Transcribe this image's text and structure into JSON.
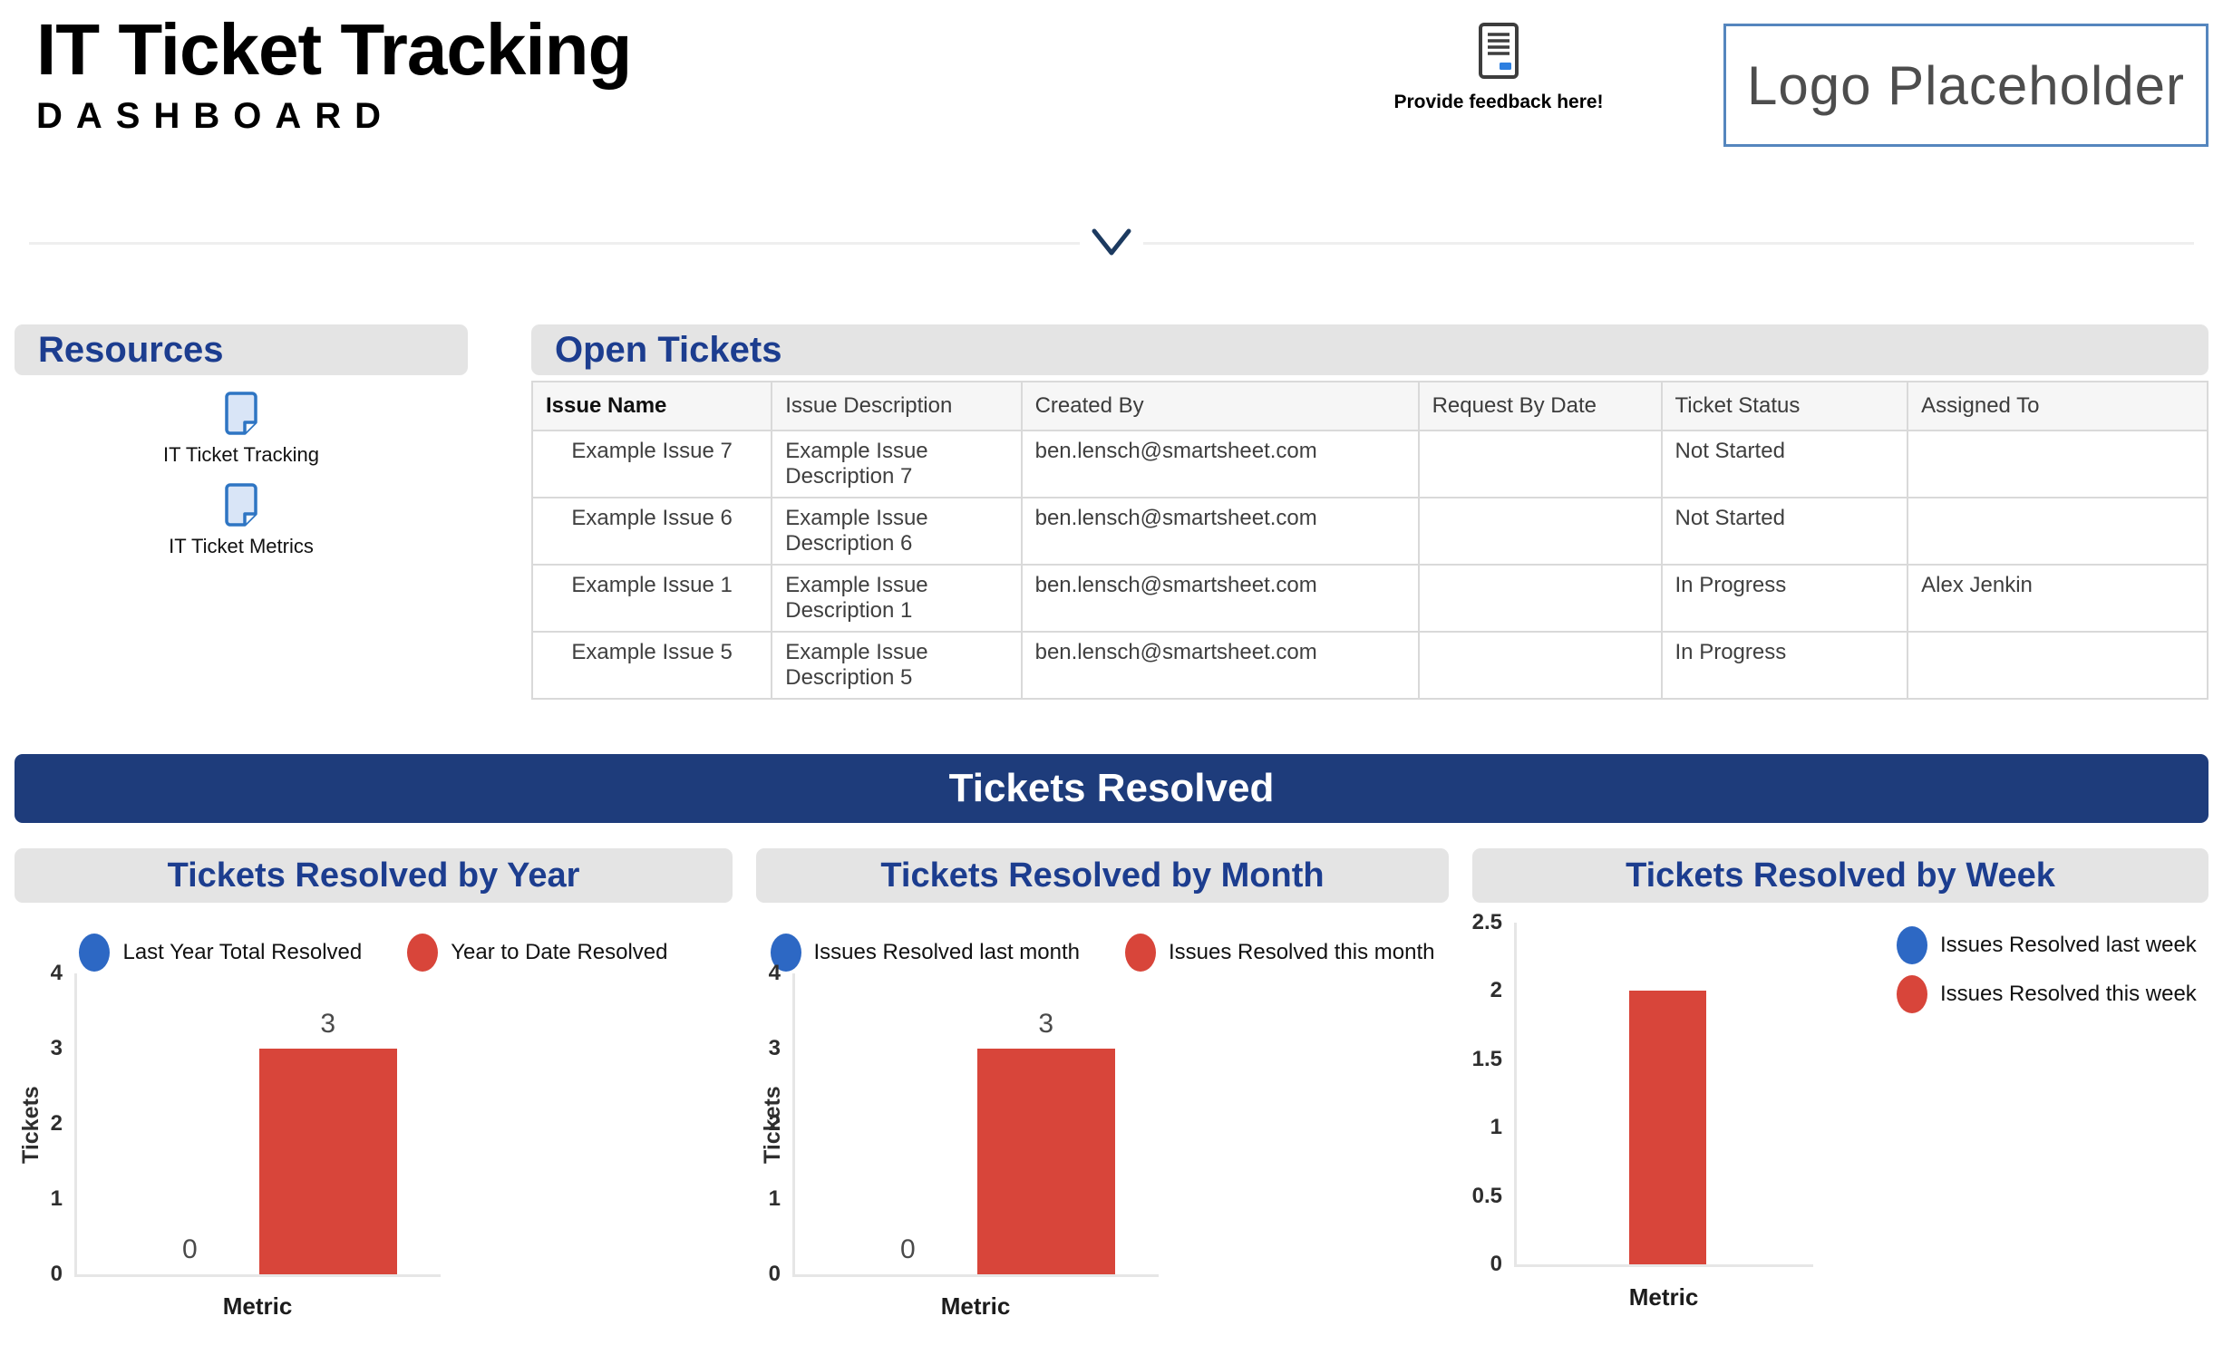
{
  "header": {
    "title": "IT Ticket Tracking",
    "subtitle": "DASHBOARD",
    "feedback_label": "Provide feedback here!",
    "logo_text": "Logo Placeholder"
  },
  "resources": {
    "title": "Resources",
    "items": [
      {
        "label": "IT Ticket Tracking"
      },
      {
        "label": "IT Ticket Metrics"
      }
    ]
  },
  "open_tickets": {
    "title": "Open Tickets",
    "columns": [
      "Issue Name",
      "Issue Description",
      "Created By",
      "Request By Date",
      "Ticket Status",
      "Assigned To"
    ],
    "rows": [
      {
        "issue_name": "Example Issue 7",
        "description": "Example Issue Description 7",
        "created_by": "ben.lensch@smartsheet.com",
        "request_by_date": "",
        "status": "Not Started",
        "assigned_to": ""
      },
      {
        "issue_name": "Example Issue 6",
        "description": "Example Issue Description 6",
        "created_by": "ben.lensch@smartsheet.com",
        "request_by_date": "",
        "status": "Not Started",
        "assigned_to": ""
      },
      {
        "issue_name": "Example Issue 1",
        "description": "Example Issue Description 1",
        "created_by": "ben.lensch@smartsheet.com",
        "request_by_date": "",
        "status": "In Progress",
        "assigned_to": "Alex Jenkin"
      },
      {
        "issue_name": "Example Issue 5",
        "description": "Example Issue Description 5",
        "created_by": "ben.lensch@smartsheet.com",
        "request_by_date": "",
        "status": "In Progress",
        "assigned_to": ""
      }
    ]
  },
  "banner": {
    "title": "Tickets Resolved"
  },
  "colors": {
    "heading_blue": "#1C3D8F",
    "banner_navy": "#1E3C7B",
    "bar_blue": "#2D68C4",
    "bar_red": "#D8453A",
    "section_gray": "#E4E4E4"
  },
  "chart_data": [
    {
      "type": "bar",
      "title": "Tickets Resolved by Year",
      "categories": [
        "Metric"
      ],
      "series": [
        {
          "name": "Last Year Total Resolved",
          "color": "#2D68C4",
          "values": [
            0
          ]
        },
        {
          "name": "Year to Date Resolved",
          "color": "#D8453A",
          "values": [
            3
          ]
        }
      ],
      "xlabel": "Metric",
      "ylabel": "Tickets",
      "ylim": [
        0,
        4
      ],
      "yticks": [
        0,
        1,
        2,
        3,
        4
      ],
      "legend_position": "top",
      "data_labels": true,
      "grid": false
    },
    {
      "type": "bar",
      "title": "Tickets Resolved by Month",
      "categories": [
        "Metric"
      ],
      "series": [
        {
          "name": "Issues Resolved last month",
          "color": "#2D68C4",
          "values": [
            0
          ]
        },
        {
          "name": "Issues Resolved this month",
          "color": "#D8453A",
          "values": [
            3
          ]
        }
      ],
      "xlabel": "Metric",
      "ylabel": "Tickets",
      "ylim": [
        0,
        4
      ],
      "yticks": [
        0,
        1,
        2,
        3,
        4
      ],
      "legend_position": "top",
      "data_labels": true,
      "grid": false
    },
    {
      "type": "bar",
      "title": "Tickets Resolved by Week",
      "categories": [
        "Metric"
      ],
      "series": [
        {
          "name": "Issues Resolved last week",
          "color": "#2D68C4",
          "values": [
            0
          ]
        },
        {
          "name": "Issues Resolved this week",
          "color": "#D8453A",
          "values": [
            2
          ]
        }
      ],
      "xlabel": "Metric",
      "ylabel": "",
      "ylim": [
        0,
        2.5
      ],
      "yticks": [
        0,
        0.5,
        1,
        1.5,
        2,
        2.5
      ],
      "legend_position": "right",
      "data_labels": false,
      "grid": false
    }
  ]
}
